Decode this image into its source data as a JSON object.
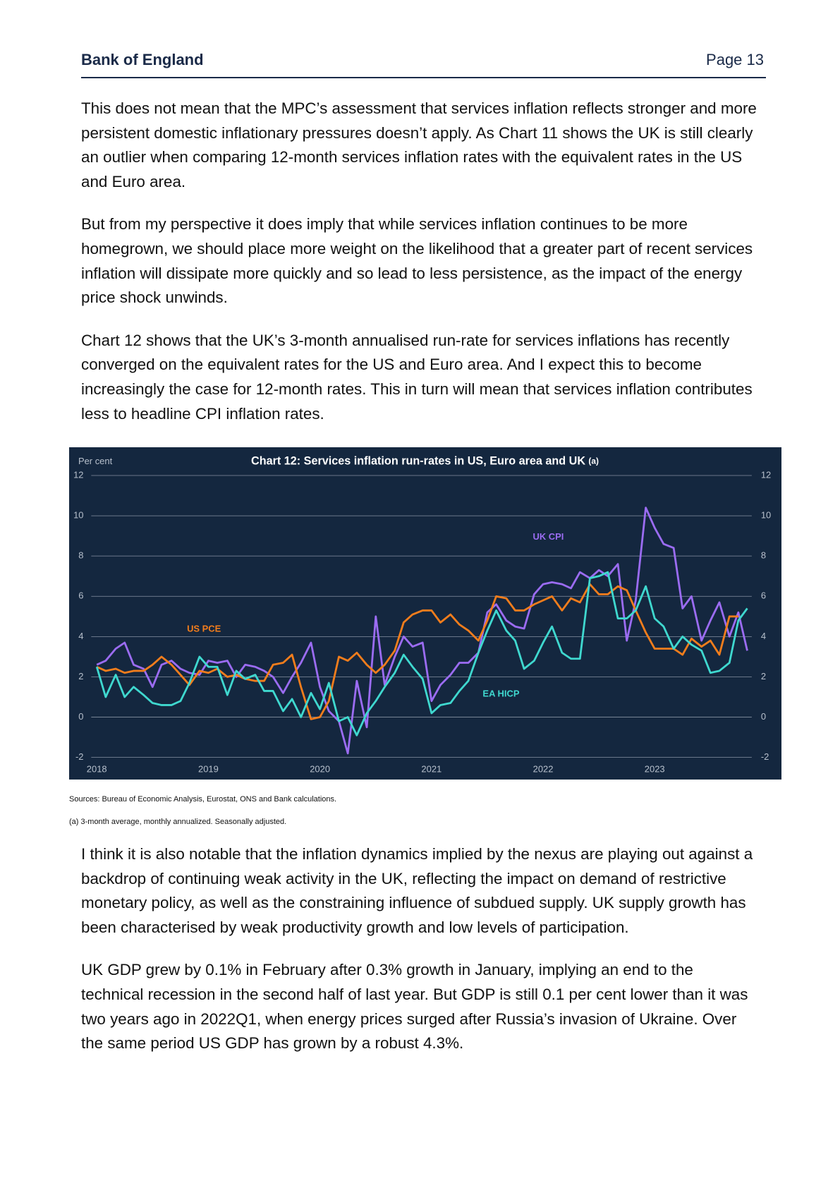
{
  "header": {
    "org": "Bank of England",
    "page": "Page 13"
  },
  "paragraphs_before": [
    "This does not mean that the MPC’s assessment that services inflation reflects stronger and more persistent domestic inflationary pressures doesn’t apply. As Chart 11 shows the UK is still clearly an outlier when comparing 12-month services inflation rates with the equivalent rates in the US and Euro area.",
    "But from my perspective it does imply that while services inflation continues to be more homegrown, we should place more weight on the likelihood that a greater part of recent services inflation will dissipate more quickly and so lead to less persistence, as the impact of the energy price shock unwinds.",
    "Chart 12 shows that the UK’s 3-month annualised run-rate for services inflations has recently converged on the equivalent rates for the US and Euro area. And I expect this to become increasingly the case for 12-month rates. This in turn will mean that services inflation contributes less to headline CPI inflation rates."
  ],
  "chart_data": {
    "type": "line",
    "title": "Chart 12: Services inflation run-rates in US, Euro area and UK",
    "title_note": "(a)",
    "ylabel": "Per cent",
    "x": [
      2018,
      2018.08,
      2018.17,
      2018.25,
      2018.33,
      2018.42,
      2018.5,
      2018.58,
      2018.67,
      2018.75,
      2018.83,
      2018.92,
      2019,
      2019.08,
      2019.17,
      2019.25,
      2019.33,
      2019.42,
      2019.5,
      2019.58,
      2019.67,
      2019.75,
      2019.83,
      2019.92,
      2020,
      2020.08,
      2020.17,
      2020.25,
      2020.33,
      2020.42,
      2020.5,
      2020.58,
      2020.67,
      2020.75,
      2020.83,
      2020.92,
      2021,
      2021.08,
      2021.17,
      2021.25,
      2021.33,
      2021.42,
      2021.5,
      2021.58,
      2021.67,
      2021.75,
      2021.83,
      2021.92,
      2022,
      2022.08,
      2022.17,
      2022.25,
      2022.33,
      2022.42,
      2022.5,
      2022.58,
      2022.67,
      2022.75,
      2022.83,
      2022.92,
      2023,
      2023.08,
      2023.17,
      2023.25,
      2023.33,
      2023.42,
      2023.5,
      2023.58,
      2023.67,
      2023.75,
      2023.83
    ],
    "series": [
      {
        "name": "UK CPI",
        "color": "#9b6cf2",
        "values": [
          2.6,
          2.8,
          3.4,
          3.7,
          2.6,
          2.4,
          1.5,
          2.6,
          2.8,
          2.4,
          2.2,
          2.1,
          2.8,
          2.7,
          2.8,
          2.0,
          2.6,
          2.5,
          2.3,
          2.0,
          1.2,
          2.0,
          2.7,
          3.7,
          1.5,
          0.3,
          -0.2,
          -1.8,
          1.8,
          -0.5,
          5.0,
          1.6,
          3.0,
          4.0,
          3.5,
          3.7,
          0.8,
          1.6,
          2.1,
          2.7,
          2.7,
          3.2,
          5.2,
          5.6,
          4.8,
          4.5,
          4.4,
          6.1,
          6.6,
          6.7,
          6.6,
          6.4,
          7.2,
          6.9,
          7.3,
          7.0,
          7.6,
          3.8,
          5.8,
          10.4,
          9.4,
          8.6,
          8.4,
          5.4,
          6.0,
          3.8,
          4.8,
          5.7,
          4.0,
          5.2,
          3.3
        ]
      },
      {
        "name": "US PCE",
        "color": "#f27d1c",
        "values": [
          2.5,
          2.3,
          2.4,
          2.2,
          2.3,
          2.3,
          2.6,
          3.0,
          2.6,
          2.1,
          1.6,
          2.3,
          2.2,
          2.4,
          2.0,
          2.1,
          1.9,
          1.8,
          1.8,
          2.6,
          2.7,
          3.1,
          1.5,
          -0.1,
          0.0,
          0.8,
          3.0,
          2.8,
          3.2,
          2.6,
          2.2,
          2.6,
          3.3,
          4.7,
          5.1,
          5.3,
          5.3,
          4.7,
          5.1,
          4.6,
          4.3,
          3.8,
          4.8,
          6.0,
          5.9,
          5.3,
          5.3,
          5.6,
          5.8,
          6.0,
          5.3,
          5.9,
          5.7,
          6.6,
          6.1,
          6.1,
          6.5,
          6.3,
          5.3,
          4.2,
          3.4,
          3.4,
          3.4,
          3.1,
          3.9,
          3.5,
          3.8,
          3.1,
          5.0,
          5.0,
          null
        ]
      },
      {
        "name": "EA HICP",
        "color": "#3fd8cf",
        "values": [
          2.5,
          1.0,
          2.1,
          1.0,
          1.5,
          1.1,
          0.7,
          0.6,
          0.6,
          0.8,
          1.7,
          3.0,
          2.5,
          2.5,
          1.1,
          2.3,
          1.9,
          2.1,
          1.3,
          1.3,
          0.3,
          0.9,
          0.0,
          1.2,
          0.4,
          1.7,
          -0.2,
          0.0,
          -0.9,
          0.2,
          0.8,
          1.5,
          2.2,
          3.1,
          2.5,
          1.9,
          0.2,
          0.6,
          0.7,
          1.3,
          1.8,
          3.2,
          4.3,
          5.3,
          4.3,
          3.8,
          2.4,
          2.8,
          3.7,
          4.5,
          3.2,
          2.9,
          2.9,
          6.9,
          7.0,
          7.2,
          4.9,
          4.9,
          5.3,
          6.5,
          4.9,
          4.5,
          3.4,
          4.0,
          3.6,
          3.3,
          2.2,
          2.3,
          2.7,
          4.8,
          5.4
        ]
      }
    ],
    "xlim": [
      2017.95,
      2023.87
    ],
    "xticks": [
      2018,
      2019,
      2020,
      2021,
      2022,
      2023
    ],
    "ylim": [
      -2,
      12
    ],
    "yticks": [
      -2,
      0,
      2,
      4,
      6,
      8,
      10,
      12
    ],
    "y2lim": [
      -2,
      12
    ],
    "y2ticks": [
      -2,
      0,
      2,
      4,
      6,
      8,
      10,
      12
    ],
    "grid": true
  },
  "sources": "Sources: Bureau of Economic Analysis, Eurostat, ONS and Bank calculations.",
  "footnote": "(a) 3-month average, monthly annualized. Seasonally adjusted.",
  "paragraphs_after": [
    "I think it is also notable that the inflation dynamics implied by the nexus are playing out against a backdrop of continuing weak activity in the UK, reflecting the impact on demand of restrictive monetary policy, as well as the constraining influence of subdued supply. UK supply growth has been characterised by weak productivity growth and low levels of participation.",
    "UK GDP grew by 0.1% in February after 0.3% growth in January, implying an end to the technical recession in the second half of last year. But GDP is still 0.1 per cent lower than it was two years ago in 2022Q1, when energy prices surged after Russia’s invasion of Ukraine. Over the same period  US GDP has grown by a robust 4.3%."
  ]
}
